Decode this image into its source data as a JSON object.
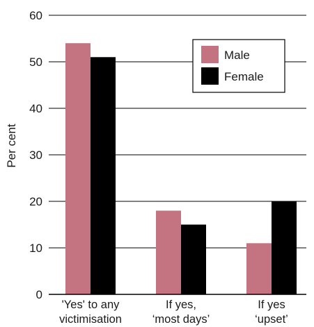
{
  "chart_data": {
    "type": "bar",
    "categories": [
      [
        "'Yes' to any",
        "victimisation"
      ],
      [
        "If yes,",
        "‘most days’"
      ],
      [
        "If yes",
        "‘upset’"
      ]
    ],
    "series": [
      {
        "name": "Male",
        "values": [
          54,
          18,
          11
        ],
        "color": "#c47480"
      },
      {
        "name": "Female",
        "values": [
          51,
          15,
          20
        ],
        "color": "#000000"
      }
    ],
    "ylabel": "Per cent",
    "ylim": [
      0,
      60
    ],
    "yticks": [
      0,
      10,
      20,
      30,
      40,
      50,
      60
    ],
    "grid": true,
    "legend_position": "top-right"
  }
}
